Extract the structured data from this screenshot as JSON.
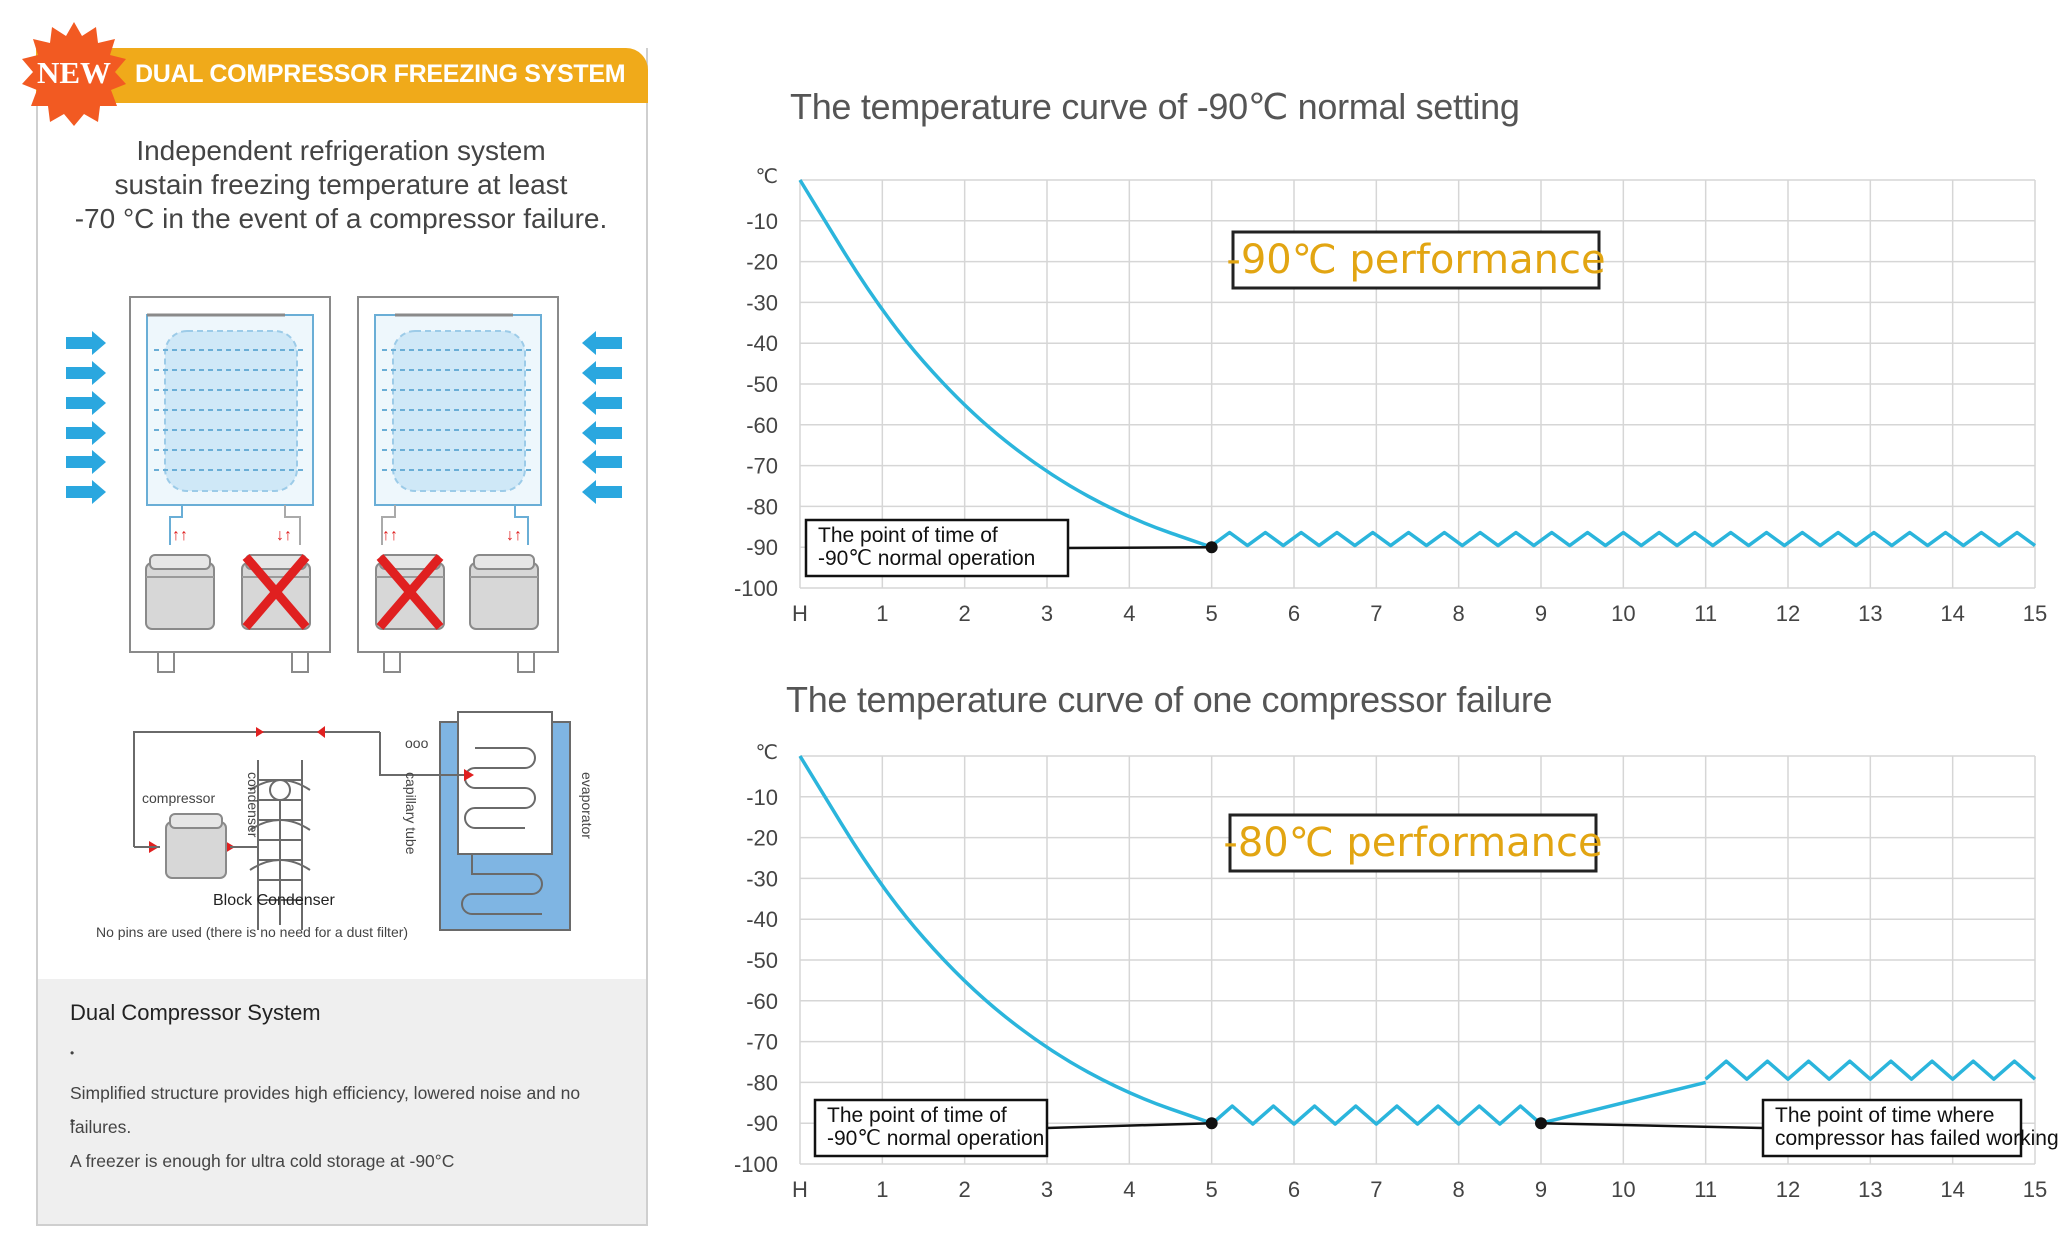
{
  "left_panel": {
    "badge": "NEW",
    "banner_title": "DUAL COMPRESSOR FREEZING SYSTEM",
    "intro_lines": [
      "Independent refrigeration system",
      "sustain freezing temperature at least",
      "-70 °C in the event of a compressor failure."
    ],
    "diagram_labels": {
      "compressor": "compressor",
      "condenser": "condenser",
      "capillary": "capillary tube",
      "evaporator": "evaporator",
      "block_condenser": "Block Condenser",
      "no_pins": "No pins are used (there is no need for a dust filter)"
    },
    "system_title": "Dual Compressor System",
    "bullets": [
      "Simplified structure provides high efficiency, lowered noise and no failures.",
      "A freezer is enough for ultra cold storage at -90°C"
    ]
  },
  "colors": {
    "banner": "#f0aa1a",
    "curve": "#2bb5dc",
    "performance_text": "#e2a512",
    "grid": "#d6d6d6"
  },
  "chart_data": [
    {
      "type": "line",
      "title": "The temperature curve  of -90℃ normal setting",
      "xlabel": "",
      "ylabel": "℃",
      "x_ticks": [
        "H",
        "1",
        "2",
        "3",
        "4",
        "5",
        "6",
        "7",
        "8",
        "9",
        "10",
        "11",
        "12",
        "13",
        "14",
        "15"
      ],
      "y_ticks": [
        -10,
        -20,
        -30,
        -40,
        -50,
        -60,
        -70,
        -80,
        -90,
        -100
      ],
      "ylim": [
        -100,
        0
      ],
      "xlim": [
        0,
        15
      ],
      "performance_label": "-90℃ performance",
      "cooldown": {
        "x": [
          0,
          1,
          2,
          3,
          4,
          5
        ],
        "y": [
          0,
          -33,
          -56,
          -72,
          -83,
          -90
        ]
      },
      "oscillation": [
        {
          "from": 5,
          "to": 15,
          "center": -88,
          "amplitude": 1.6,
          "cycles": 23
        }
      ],
      "annotations": [
        {
          "x": 5,
          "y": -90,
          "lines": [
            "The point of time of",
            "-90℃ normal operation"
          ]
        }
      ]
    },
    {
      "type": "line",
      "title": "The temperature curve  of one compressor failure",
      "xlabel": "",
      "ylabel": "℃",
      "x_ticks": [
        "H",
        "1",
        "2",
        "3",
        "4",
        "5",
        "6",
        "7",
        "8",
        "9",
        "10",
        "11",
        "12",
        "13",
        "14",
        "15"
      ],
      "y_ticks": [
        -10,
        -20,
        -30,
        -40,
        -50,
        -60,
        -70,
        -80,
        -90,
        -100
      ],
      "ylim": [
        -100,
        0
      ],
      "xlim": [
        0,
        15
      ],
      "performance_label": "-80℃ performance",
      "cooldown": {
        "x": [
          0,
          1,
          2,
          3,
          4,
          5
        ],
        "y": [
          0,
          -33,
          -56,
          -72,
          -83,
          -90
        ]
      },
      "oscillation": [
        {
          "from": 5,
          "to": 9,
          "center": -88,
          "amplitude": 2.2,
          "cycles": 8
        },
        {
          "from": 11,
          "to": 15,
          "center": -77,
          "amplitude": 2.2,
          "cycles": 8
        }
      ],
      "rise": {
        "x": [
          9,
          10,
          11
        ],
        "y": [
          -90,
          -84,
          -80
        ]
      },
      "annotations": [
        {
          "x": 5,
          "y": -90,
          "lines": [
            "The point of time of",
            "-90℃ normal operation"
          ]
        },
        {
          "x": 9,
          "y": -90,
          "lines": [
            "The point of time where",
            "compressor has failed working"
          ]
        }
      ]
    }
  ]
}
